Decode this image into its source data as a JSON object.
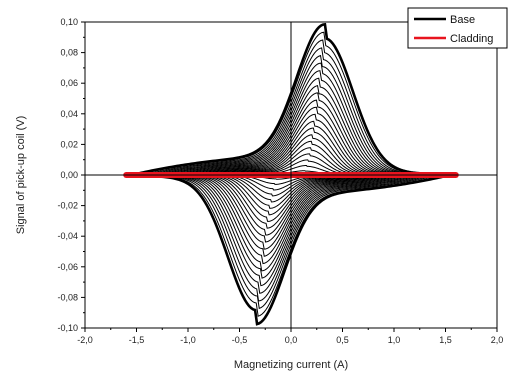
{
  "chart_data": {
    "type": "line",
    "title": "",
    "xlabel": "Magnetizing current (A)",
    "ylabel": "Signal of pick-up coil (V)",
    "xlim": [
      -2.0,
      2.0
    ],
    "ylim": [
      -0.1,
      0.1
    ],
    "x_ticks": [
      "-2,0",
      "-1,5",
      "-1,0",
      "-0,5",
      "0,0",
      "0,5",
      "1,0",
      "1,5",
      "2,0"
    ],
    "y_ticks": [
      "0,10",
      "0,08",
      "0,06",
      "0,04",
      "0,02",
      "0,00",
      "-0,02",
      "-0,04",
      "-0,06",
      "-0,08",
      "-0,10"
    ],
    "legend_placement": "top-right",
    "grid": false,
    "reference_lines": {
      "x": 0.0,
      "y": 0.0
    },
    "series": [
      {
        "name": "Base",
        "color": "#000000",
        "style": "nested loops",
        "loop_count": 22,
        "outer_peak": {
          "x": 0.33,
          "y": 0.087
        },
        "outer_trough": {
          "x": -0.34,
          "y": -0.086
        },
        "outer_amplitude_x": 1.55
      },
      {
        "name": "Cladding",
        "color": "#e8141e",
        "style": "flat band",
        "x_range": [
          -1.6,
          1.6
        ],
        "y": 0.0
      }
    ]
  }
}
